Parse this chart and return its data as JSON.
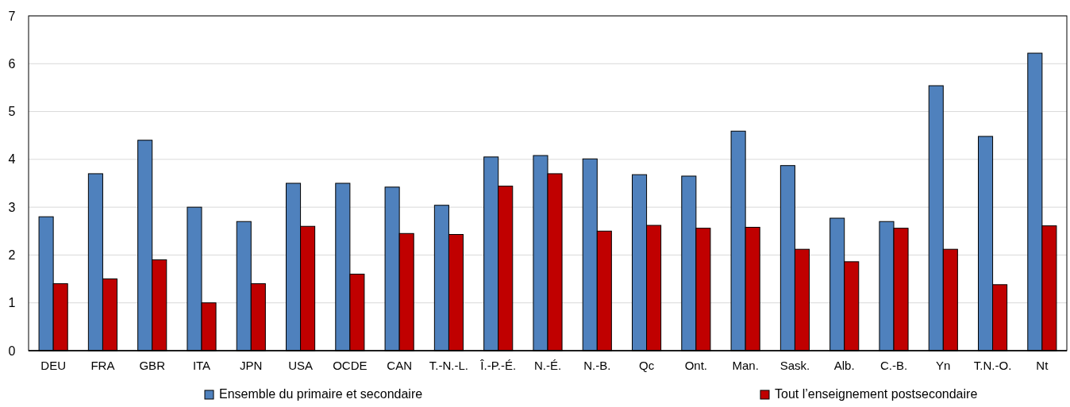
{
  "chart_data": {
    "type": "bar",
    "categories": [
      "DEU",
      "FRA",
      "GBR",
      "ITA",
      "JPN",
      "USA",
      "OCDE",
      "CAN",
      "T.-N.-L.",
      "Î.-P.-É.",
      "N.-É.",
      "N.-B.",
      "Qc",
      "Ont.",
      "Man.",
      "Sask.",
      "Alb.",
      "C.-B.",
      "Yn",
      "T.N.-O.",
      "Nt"
    ],
    "series": [
      {
        "name": "Ensemble du primaire et secondaire",
        "color": "#4f81bd",
        "values": [
          2.8,
          3.7,
          4.4,
          3.0,
          2.7,
          3.5,
          3.5,
          3.42,
          3.04,
          4.05,
          4.08,
          4.01,
          3.68,
          3.65,
          4.59,
          3.87,
          2.77,
          2.7,
          5.54,
          4.48,
          6.22
        ]
      },
      {
        "name": "Tout l’enseignement postsecondaire",
        "color": "#c00000",
        "values": [
          1.4,
          1.5,
          1.9,
          1.0,
          1.4,
          2.6,
          1.6,
          2.45,
          2.43,
          3.44,
          3.7,
          2.5,
          2.62,
          2.56,
          2.58,
          2.12,
          1.86,
          2.56,
          2.12,
          1.38,
          2.61
        ]
      }
    ],
    "ylim": [
      0,
      7
    ],
    "yticks": [
      0,
      1,
      2,
      3,
      4,
      5,
      6,
      7
    ],
    "grid": "y",
    "legend": "bottom"
  }
}
